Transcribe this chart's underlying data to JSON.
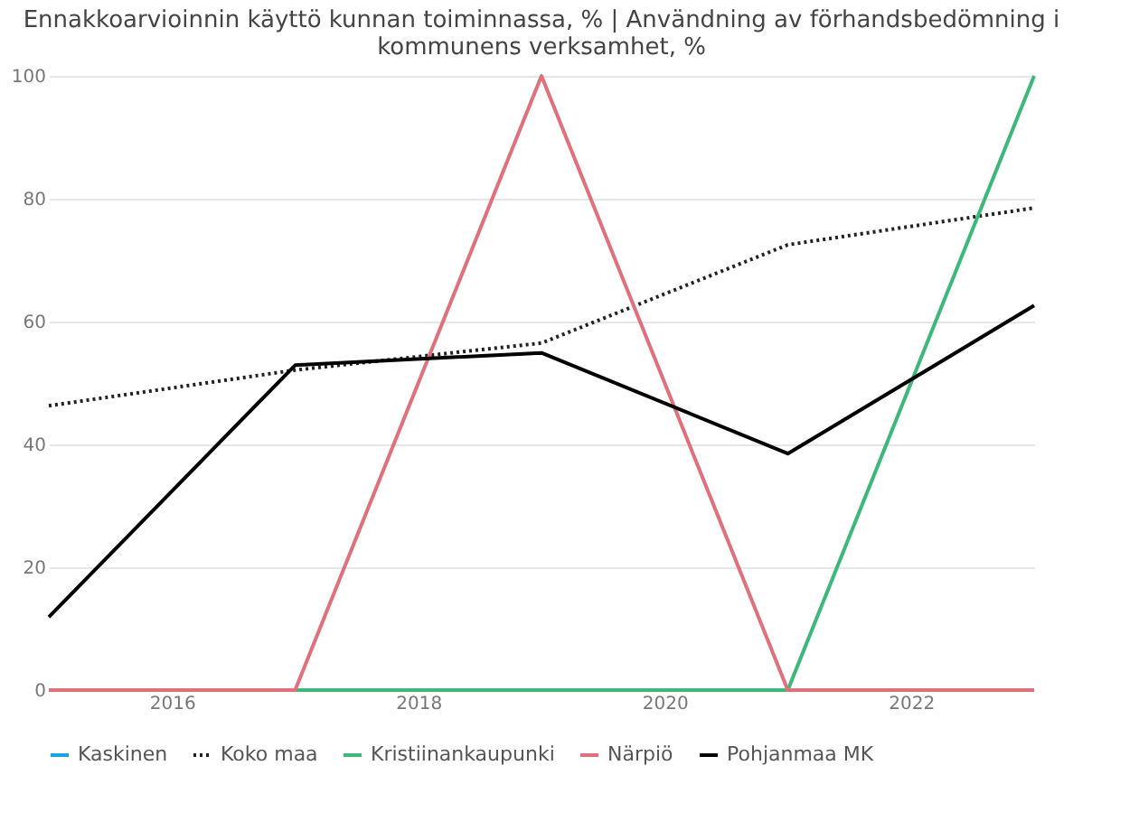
{
  "chart_data": {
    "type": "line",
    "title": [
      "Ennakkoarvioinnin käyttö kunnan toiminnassa, % | Användning av förhandsbedömning i",
      "kommunens verksamhet, %"
    ],
    "x": [
      2015,
      2017,
      2019,
      2021,
      2023
    ],
    "series": [
      {
        "name": "Kaskinen",
        "color": "#1aa1e0",
        "values": [
          null,
          null,
          null,
          null,
          null
        ]
      },
      {
        "name": "Koko maa",
        "color": "#222222",
        "line_style": "dotted",
        "values": [
          46.3,
          52.1,
          56.5,
          72.5,
          78.5
        ]
      },
      {
        "name": "Kristiinankaupunki",
        "color": "#3cb878",
        "values": [
          0,
          0,
          0,
          0,
          100
        ]
      },
      {
        "name": "Närpiö",
        "color": "#e0707a",
        "values": [
          0,
          0,
          100,
          0,
          0
        ]
      },
      {
        "name": "Pohjanmaa MK",
        "color": "#000000",
        "values": [
          11.9,
          52.9,
          54.9,
          38.5,
          62.6
        ]
      }
    ],
    "xlim": [
      2015,
      2023
    ],
    "xticks": [
      2016,
      2018,
      2020,
      2022
    ],
    "ylim": [
      0,
      100
    ],
    "yticks": [
      0,
      20,
      40,
      60,
      80,
      100
    ],
    "grid": "y",
    "legend": "bottom",
    "line_style": "solid"
  }
}
